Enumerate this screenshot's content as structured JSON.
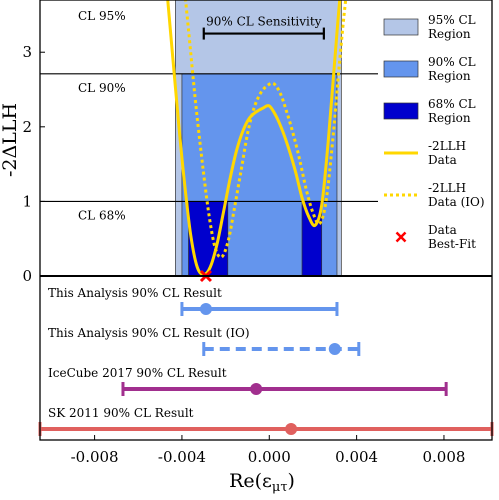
{
  "chart_data": {
    "type": "line",
    "xlabel": "Re(ε",
    "xlabel_sub": "μτ",
    "xlabel_close": ")",
    "ylabel": "-2ΔLLH",
    "xlim": [
      -0.0105,
      0.0102
    ],
    "ylim": [
      0,
      3.7
    ],
    "x_ticks": [
      -0.008,
      -0.004,
      0.0,
      0.004,
      0.008
    ],
    "x_tick_labels": [
      "-0.008",
      "-0.004",
      "0.000",
      "0.004",
      "0.008"
    ],
    "y_ticks": [
      0,
      1,
      2,
      3
    ],
    "y_tick_labels": [
      "0",
      "1",
      "2",
      "3"
    ],
    "cl_lines": [
      {
        "label": "CL 95%",
        "y": 3.84
      },
      {
        "label": "CL 90%",
        "y": 2.71
      },
      {
        "label": "CL 68%",
        "y": 1.0
      }
    ],
    "regions": [
      {
        "name": "95% CL Region",
        "color": "#b4c6e7",
        "intervals": [
          [
            -0.0043,
            0.0033
          ]
        ]
      },
      {
        "name": "90% CL Region",
        "color": "#6495ed",
        "intervals": [
          [
            -0.004,
            0.0031
          ]
        ]
      },
      {
        "name": "68% CL Region",
        "color": "#0000cd",
        "intervals": [
          [
            -0.0037,
            -0.0019
          ],
          [
            0.0015,
            0.0024
          ]
        ]
      }
    ],
    "sensitivity": {
      "label": "90% CL Sensitivity",
      "range": [
        -0.003,
        0.0025
      ],
      "y": 3.25
    },
    "series": [
      {
        "name": "-2LLH Data",
        "style": "solid",
        "color": "#ffd700",
        "x": [
          -0.0048,
          -0.0045,
          -0.0042,
          -0.0039,
          -0.0036,
          -0.0033,
          -0.003,
          -0.0027,
          -0.0024,
          -0.0021,
          -0.0018,
          -0.0015,
          -0.0012,
          -0.0009,
          -0.0006,
          -0.0003,
          0.0,
          0.0003,
          0.0006,
          0.0009,
          0.0012,
          0.0015,
          0.0018,
          0.0021,
          0.0024,
          0.0027,
          0.003,
          0.0033,
          0.0036
        ],
        "y": [
          4.2,
          3.2,
          2.2,
          1.3,
          0.55,
          0.12,
          0.02,
          0.12,
          0.42,
          0.85,
          1.3,
          1.68,
          1.95,
          2.12,
          2.2,
          2.25,
          2.28,
          2.15,
          1.95,
          1.7,
          1.4,
          1.05,
          0.8,
          0.68,
          0.95,
          1.8,
          2.9,
          3.9,
          4.3
        ]
      },
      {
        "name": "-2LLH Data (IO)",
        "style": "dotted",
        "color": "#ffd700",
        "x": [
          -0.004,
          -0.0037,
          -0.0034,
          -0.0031,
          -0.0028,
          -0.0025,
          -0.0022,
          -0.0019,
          -0.0016,
          -0.0013,
          -0.001,
          -0.0007,
          -0.0004,
          -0.0001,
          0.0002,
          0.0005,
          0.0008,
          0.0011,
          0.0014,
          0.0017,
          0.002,
          0.0023,
          0.0026,
          0.0029,
          0.0032,
          0.0035,
          0.0038
        ],
        "y": [
          4.2,
          3.3,
          2.4,
          1.6,
          0.9,
          0.4,
          0.25,
          0.45,
          0.9,
          1.4,
          1.9,
          2.25,
          2.45,
          2.55,
          2.58,
          2.45,
          2.2,
          1.9,
          1.55,
          1.15,
          0.85,
          0.7,
          1.0,
          1.8,
          2.8,
          3.7,
          4.3
        ]
      }
    ],
    "best_fit": {
      "name": "Data Best-Fit",
      "x": -0.0029,
      "y": 0.0,
      "color": "#ff0000"
    },
    "results": [
      {
        "label": "This Analysis 90% CL Result",
        "low": -0.004,
        "high": 0.0031,
        "center": -0.0029,
        "color": "#6495ed",
        "style": "solid"
      },
      {
        "label": "This Analysis 90% CL Result (IO)",
        "low": -0.003,
        "high": 0.0041,
        "center": 0.003,
        "color": "#6495ed",
        "style": "dashed"
      },
      {
        "label": "IceCube 2017 90% CL Result",
        "low": -0.0067,
        "high": 0.0081,
        "center": -0.0006,
        "color": "#a12f8e",
        "style": "solid"
      },
      {
        "label": "SK 2011 90% CL Result",
        "low": -0.011,
        "high": 0.011,
        "center": 0.001,
        "color": "#e0605e",
        "style": "solid"
      }
    ],
    "legend": {
      "placement": "right",
      "entries": [
        {
          "label_lines": [
            "95% CL",
            "Region"
          ],
          "kind": "patch",
          "color": "#b4c6e7"
        },
        {
          "label_lines": [
            "90% CL",
            "Region"
          ],
          "kind": "patch",
          "color": "#6495ed"
        },
        {
          "label_lines": [
            "68% CL",
            "Region"
          ],
          "kind": "patch",
          "color": "#0000cd"
        },
        {
          "label_lines": [
            "-2LLH",
            "Data"
          ],
          "kind": "line",
          "color": "#ffd700"
        },
        {
          "label_lines": [
            "-2LLH",
            "Data (IO)"
          ],
          "kind": "dotted",
          "color": "#ffd700"
        },
        {
          "label_lines": [
            "Data",
            "Best-Fit"
          ],
          "kind": "marker",
          "color": "#ff0000"
        }
      ]
    }
  }
}
